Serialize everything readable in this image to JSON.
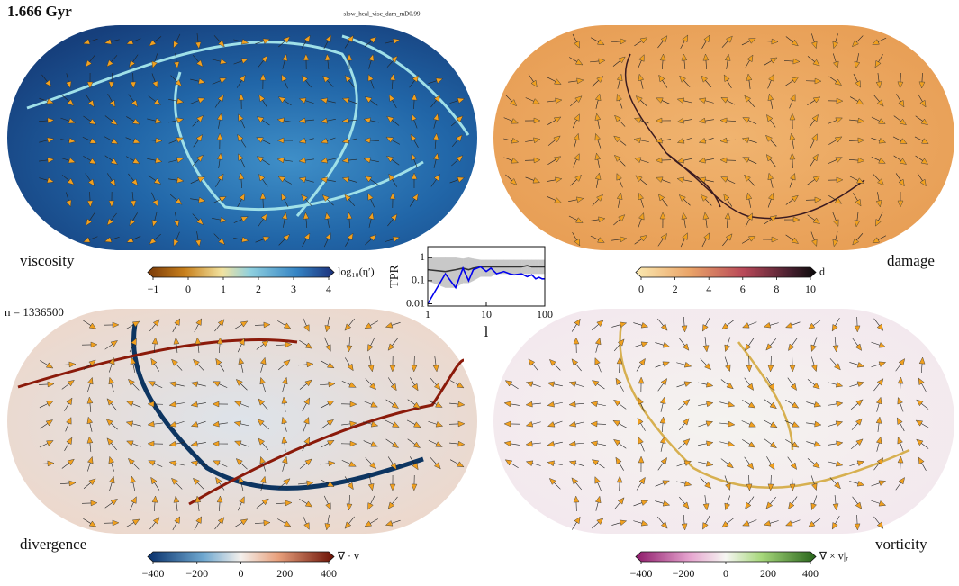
{
  "header": {
    "title": "1.666 Gyr",
    "subtitle": "slow_heal_visc_dam_mD0.99",
    "count": "n = 1336500"
  },
  "panels": [
    {
      "label": "viscosity",
      "colorbar": {
        "label": "log₁₀(η′)",
        "range": [
          -1,
          4
        ],
        "ticks": [
          {
            "value": -1,
            "label": "−1"
          },
          0,
          1,
          2,
          3,
          4
        ]
      }
    },
    {
      "label": "damage",
      "colorbar": {
        "label": "d",
        "range": [
          0,
          10
        ],
        "ticks": [
          0,
          2,
          4,
          6,
          8,
          10
        ]
      }
    },
    {
      "label": "divergence",
      "colorbar": {
        "label": "∇ · v",
        "range": [
          -400,
          400
        ],
        "ticks": [
          {
            "value": -400,
            "label": "−400"
          },
          {
            "value": -200,
            "label": "−200"
          },
          0,
          200,
          400
        ]
      }
    },
    {
      "label": "vorticity",
      "colorbar": {
        "label": "∇ × v|ᵣ",
        "range": [
          -400,
          400
        ],
        "ticks": [
          {
            "value": -400,
            "label": "−400"
          },
          {
            "value": -200,
            "label": "−200"
          },
          0,
          200,
          400
        ]
      }
    }
  ],
  "chart_data": {
    "type": "line",
    "xlabel": "l",
    "ylabel": "TPR",
    "log_x": true,
    "log_y": true,
    "x": [
      1,
      2,
      3,
      4,
      5,
      6,
      8,
      10,
      12,
      15,
      20,
      25,
      30,
      40,
      50,
      60,
      70,
      80,
      90,
      100
    ],
    "xlim": [
      1,
      100
    ],
    "ylim": [
      0.008,
      3
    ],
    "xticks": [
      1,
      10,
      100
    ],
    "yticks": [
      0.01,
      0.1,
      1
    ],
    "band": {
      "color": "#c8c8c8",
      "lower": [
        0.1,
        0.05,
        0.05,
        0.08,
        0.08,
        0.1,
        0.15,
        0.15,
        0.15,
        0.2,
        0.2,
        0.2,
        0.2,
        0.2,
        0.2,
        0.2,
        0.2,
        0.2,
        0.2,
        0.2
      ],
      "upper": [
        1,
        1,
        1,
        0.9,
        1,
        0.9,
        0.8,
        0.8,
        0.8,
        0.8,
        0.8,
        0.8,
        0.8,
        0.8,
        0.8,
        0.8,
        0.8,
        0.8,
        0.8,
        0.8
      ]
    },
    "series": [
      {
        "color": "#333333",
        "values": [
          0.3,
          0.25,
          0.3,
          0.35,
          0.3,
          0.35,
          0.4,
          0.4,
          0.4,
          0.4,
          0.4,
          0.4,
          0.4,
          0.4,
          0.45,
          0.4,
          0.4,
          0.4,
          0.4,
          0.4
        ]
      },
      {
        "color": "#0000ee",
        "values": [
          0.01,
          0.2,
          0.05,
          0.35,
          0.1,
          0.3,
          0.4,
          0.25,
          0.35,
          0.2,
          0.25,
          0.2,
          0.18,
          0.2,
          0.15,
          0.18,
          0.12,
          0.14,
          0.12,
          0.12
        ]
      }
    ]
  }
}
